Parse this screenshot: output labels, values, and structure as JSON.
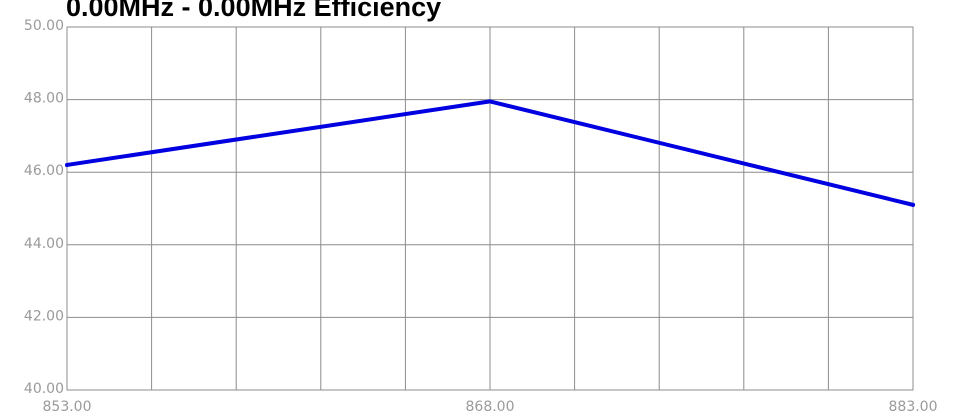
{
  "chart_data": {
    "type": "line",
    "title": "0.00MHz - 0.00MHz Efficiency",
    "xlabel": "",
    "ylabel": "",
    "xlim": [
      853,
      883
    ],
    "ylim": [
      40,
      50
    ],
    "x_tick_values": [
      853,
      868,
      883
    ],
    "x_tick_labels": [
      "853.00",
      "868.00",
      "883.00"
    ],
    "x_grid_divisions": 10,
    "y_tick_values": [
      40,
      42,
      44,
      46,
      48,
      50
    ],
    "y_tick_labels": [
      "40.00",
      "42.00",
      "44.00",
      "46.00",
      "48.00",
      "50.00"
    ],
    "grid": true,
    "legend": "none",
    "series": [
      {
        "color": "#0000e0",
        "x": [
          853,
          868,
          883
        ],
        "y": [
          46.2,
          47.95,
          45.1
        ]
      }
    ]
  }
}
